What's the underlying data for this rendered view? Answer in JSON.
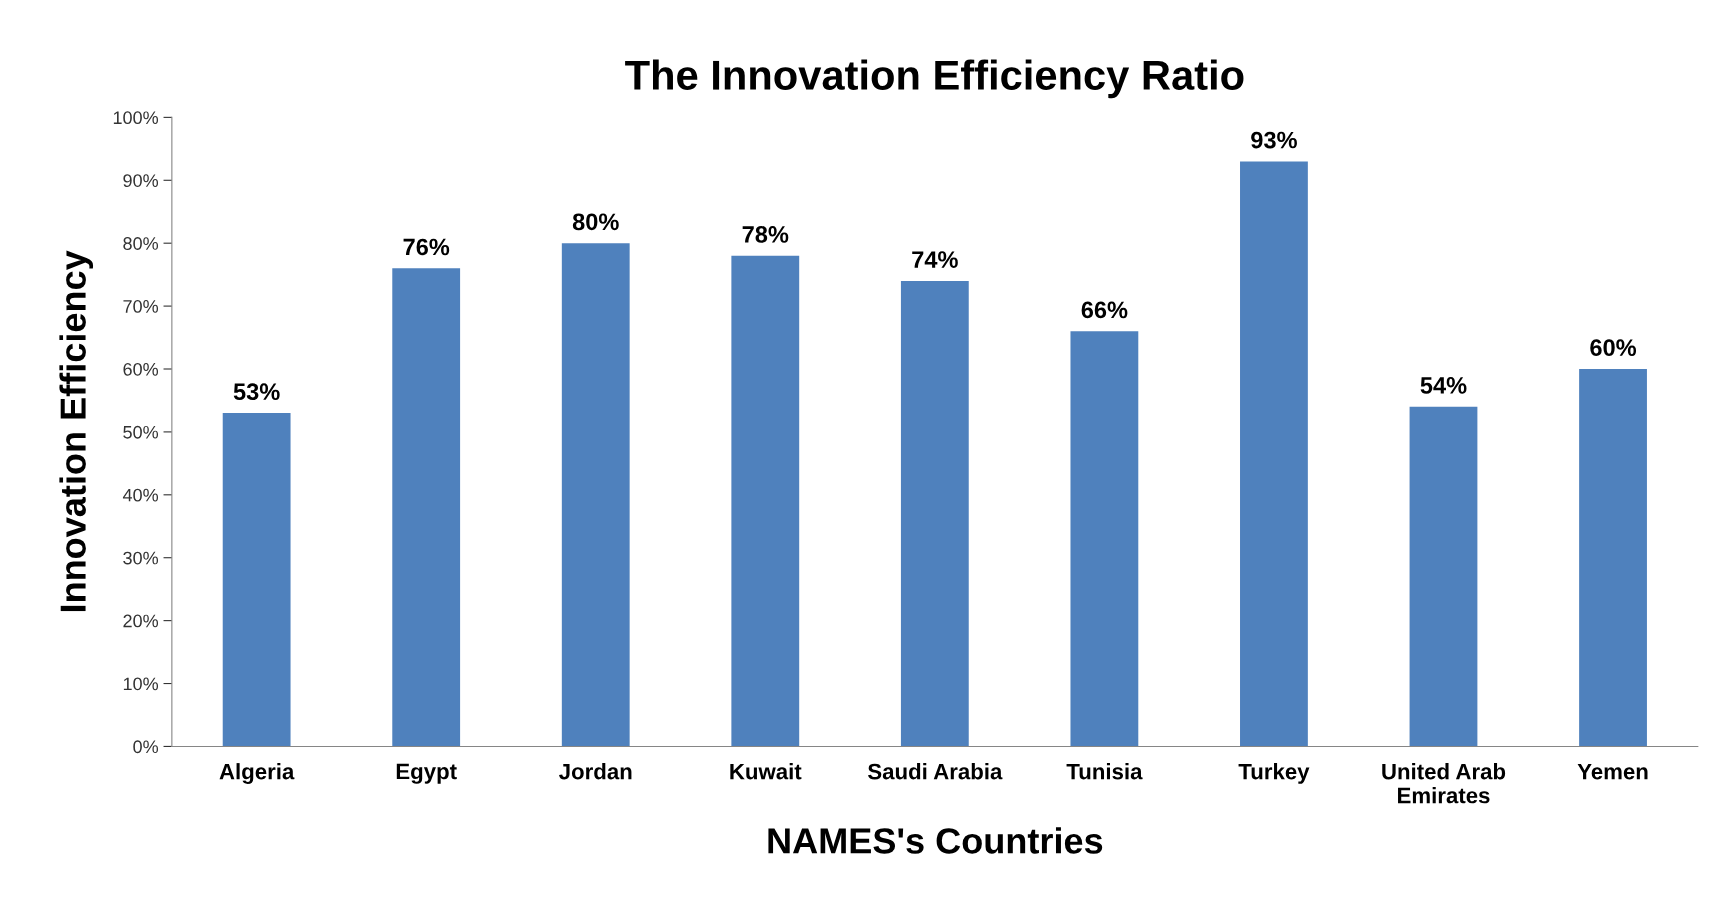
{
  "chart_data": {
    "type": "bar",
    "title": "The Innovation Efficiency Ratio",
    "xlabel": "NAMES's Countries",
    "ylabel": "Innovation Efficiency",
    "categories": [
      "Algeria",
      "Egypt",
      "Jordan",
      "Kuwait",
      "Saudi Arabia",
      "Tunisia",
      "Turkey",
      "United Arab\nEmirates",
      "Yemen"
    ],
    "values": [
      53,
      76,
      80,
      78,
      74,
      66,
      93,
      54,
      60
    ],
    "value_labels": [
      "53%",
      "76%",
      "80%",
      "78%",
      "74%",
      "66%",
      "93%",
      "54%",
      "60%"
    ],
    "color": "#4f81bd",
    "ylim": [
      0,
      100
    ],
    "yticks": [
      {
        "value": 0,
        "label": "0%"
      },
      {
        "value": 10,
        "label": "10%"
      },
      {
        "value": 20,
        "label": "20%"
      },
      {
        "value": 30,
        "label": "30%"
      },
      {
        "value": 40,
        "label": "40%"
      },
      {
        "value": 50,
        "label": "50%"
      },
      {
        "value": 60,
        "label": "60%"
      },
      {
        "value": 70,
        "label": "70%"
      },
      {
        "value": 80,
        "label": "80%"
      },
      {
        "value": 90,
        "label": "90%"
      },
      {
        "value": 100,
        "label": "100%"
      }
    ],
    "grid": false,
    "legend": false
  }
}
